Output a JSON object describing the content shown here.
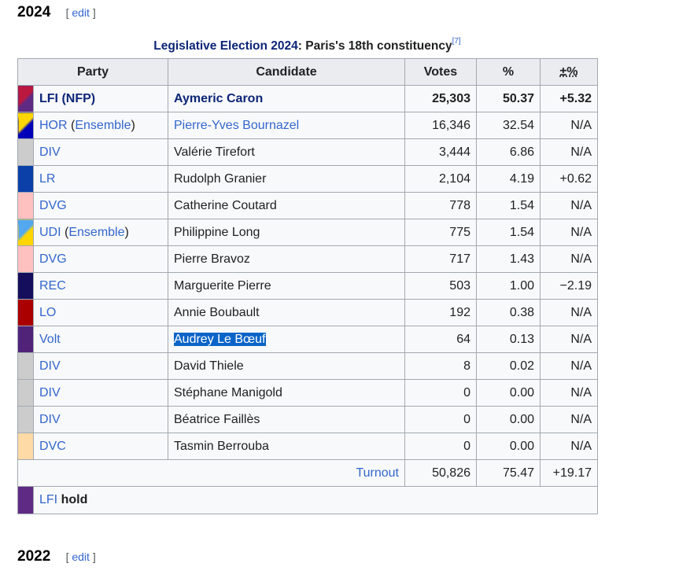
{
  "sections": {
    "current": {
      "heading": "2024",
      "edit_label": "edit",
      "bracket_open": "[",
      "bracket_close": "]"
    },
    "next": {
      "heading": "2022",
      "edit_label": "edit",
      "bracket_open": "[",
      "bracket_close": "]"
    }
  },
  "table": {
    "caption_link": "Legislative Election 2024",
    "caption_rest": ": Paris's 18th constituency",
    "caption_ref": "[7]",
    "headers": {
      "party": "Party",
      "candidate": "Candidate",
      "votes": "Votes",
      "pct": "%",
      "change": "±%"
    },
    "rows": [
      {
        "party": "LFI",
        "alliance": "NFP",
        "candidate": "Aymeric Caron",
        "votes": "25,303",
        "pct": "50.37",
        "change": "+5.32",
        "color": "#bb1840",
        "color2": "#5e2a84"
      },
      {
        "party": "HOR",
        "alliance": "Ensemble",
        "candidate": "Pierre-Yves Bournazel",
        "votes": "16,346",
        "pct": "32.54",
        "change": "N/A",
        "color": "#ffd600",
        "color2": "#0001b8"
      },
      {
        "party": "DIV",
        "alliance": "",
        "candidate": "Valérie Tirefort",
        "votes": "3,444",
        "pct": "6.86",
        "change": "N/A",
        "color": "#cccccc"
      },
      {
        "party": "LR",
        "alliance": "",
        "candidate": "Rudolph Granier",
        "votes": "2,104",
        "pct": "4.19",
        "change": "+0.62",
        "color": "#0b40a8"
      },
      {
        "party": "DVG",
        "alliance": "",
        "candidate": "Catherine Coutard",
        "votes": "778",
        "pct": "1.54",
        "change": "N/A",
        "color": "#ffc0c0"
      },
      {
        "party": "UDI",
        "alliance": "Ensemble",
        "candidate": "Philippine Long",
        "votes": "775",
        "pct": "1.54",
        "change": "N/A",
        "color": "#54a8f0",
        "color2": "#ffd600"
      },
      {
        "party": "DVG",
        "alliance": "",
        "candidate": "Pierre Bravoz",
        "votes": "717",
        "pct": "1.43",
        "change": "N/A",
        "color": "#ffc0c0"
      },
      {
        "party": "REC",
        "alliance": "",
        "candidate": "Marguerite Pierre",
        "votes": "503",
        "pct": "1.00",
        "change": "−2.19",
        "color": "#140e5c"
      },
      {
        "party": "LO",
        "alliance": "",
        "candidate": "Annie Boubault",
        "votes": "192",
        "pct": "0.38",
        "change": "N/A",
        "color": "#aa0000"
      },
      {
        "party": "Volt",
        "alliance": "",
        "candidate": "Audrey Le Bœuf",
        "votes": "64",
        "pct": "0.13",
        "change": "N/A",
        "color": "#502379",
        "selected": true
      },
      {
        "party": "DIV",
        "alliance": "",
        "candidate": "David Thiele",
        "votes": "8",
        "pct": "0.02",
        "change": "N/A",
        "color": "#cccccc"
      },
      {
        "party": "DIV",
        "alliance": "",
        "candidate": "Stéphane Manigold",
        "votes": "0",
        "pct": "0.00",
        "change": "N/A",
        "color": "#cccccc"
      },
      {
        "party": "DIV",
        "alliance": "",
        "candidate": "Béatrice Faillès",
        "votes": "0",
        "pct": "0.00",
        "change": "N/A",
        "color": "#cccccc"
      },
      {
        "party": "DVC",
        "alliance": "",
        "candidate": "Tasmin Berrouba",
        "votes": "0",
        "pct": "0.00",
        "change": "N/A",
        "color": "#fddaa6"
      }
    ],
    "turnout": {
      "label": "Turnout",
      "votes": "50,826",
      "pct": "75.47",
      "change": "+19.17"
    },
    "hold": {
      "party": "LFI",
      "word": "hold",
      "color": "#5e2a84"
    }
  }
}
